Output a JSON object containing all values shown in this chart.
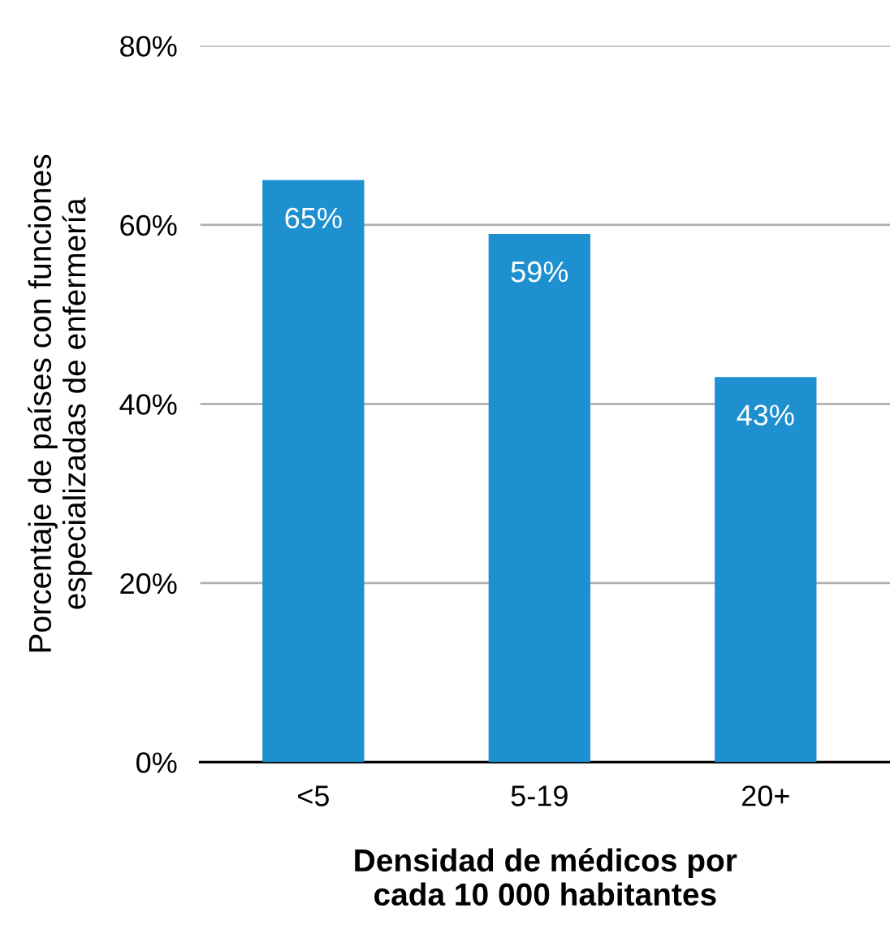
{
  "chart_data": {
    "type": "bar",
    "xlabel": "Densidad de médicos por\ncada 10 000 habitantes",
    "ylabel": "Porcentaje de países con funciones\nespecializadas de enfermería",
    "categories": [
      "<5",
      "5-19",
      "20+"
    ],
    "values": [
      65,
      59,
      43
    ],
    "color": "#1e8fcf",
    "value_labels": [
      "65%",
      "59%",
      "43%"
    ],
    "ylim": [
      0,
      80
    ],
    "yticks": [
      {
        "value": 0,
        "label": "0%"
      },
      {
        "value": 20,
        "label": "20%"
      },
      {
        "value": 40,
        "label": "40%"
      },
      {
        "value": 60,
        "label": "60%"
      },
      {
        "value": 80,
        "label": "80%"
      }
    ],
    "grid": "y",
    "legend": false
  }
}
